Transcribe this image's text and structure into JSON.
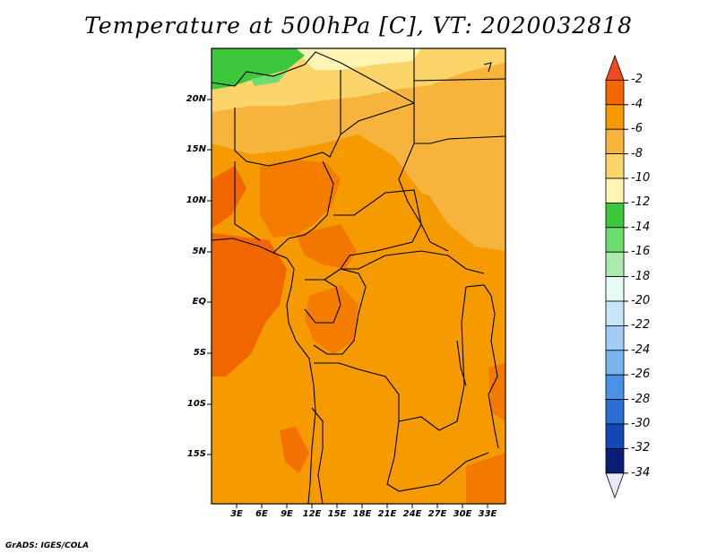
{
  "title": "Temperature at 500hPa [C], VT: 2020032818",
  "footer": "GrADS: IGES/COLA",
  "map": {
    "region": "Central Africa",
    "latitude_labels": [
      "20N",
      "15N",
      "10N",
      "5N",
      "EQ",
      "5S",
      "10S",
      "15S"
    ],
    "longitude_labels": [
      "3E",
      "6E",
      "9E",
      "12E",
      "15E",
      "18E",
      "21E",
      "24E",
      "27E",
      "30E",
      "33E"
    ]
  },
  "colorbar": {
    "unit": "C",
    "levels": [
      "-2",
      "-4",
      "-6",
      "-8",
      "-10",
      "-12",
      "-14",
      "-16",
      "-18",
      "-20",
      "-22",
      "-24",
      "-26",
      "-28",
      "-30",
      "-32",
      "-34"
    ],
    "colors": [
      "#f04a1e",
      "#f26600",
      "#f59a00",
      "#f6b43c",
      "#fbd46a",
      "#fef4b4",
      "#3cc83c",
      "#6fdc6f",
      "#aaeaaa",
      "#e6faf6",
      "#c8e6fa",
      "#a0cdf4",
      "#78b4ee",
      "#4b91e6",
      "#2d6ed2",
      "#1446b4",
      "#0a1e78",
      "#e8e8fa"
    ]
  },
  "colors": {
    "ocean_warm": "#f26600",
    "land_main": "#f59a00",
    "north_band": "#f6b43c",
    "saharan_light": "#fbd46a",
    "pale": "#fef4b4",
    "green": "#3cc83c",
    "border": "#000000"
  }
}
